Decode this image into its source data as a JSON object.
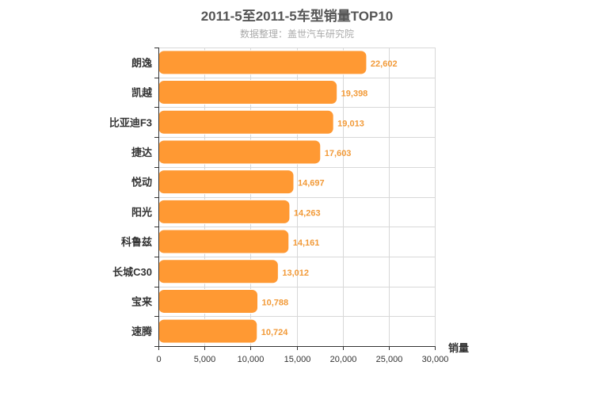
{
  "chart_data": {
    "type": "bar",
    "orientation": "horizontal",
    "title": "2011-5至2011-5车型销量TOP10",
    "subtitle": "数据整理：盖世汽车研究院",
    "categories": [
      "朗逸",
      "凯越",
      "比亚迪F3",
      "捷达",
      "悦动",
      "阳光",
      "科鲁兹",
      "长城C30",
      "宝来",
      "速腾"
    ],
    "values": [
      22602,
      19398,
      19013,
      17603,
      14697,
      14263,
      14161,
      13012,
      10788,
      10724
    ],
    "value_labels": [
      "22,602",
      "19,398",
      "19,013",
      "17,603",
      "14,697",
      "14,263",
      "14,161",
      "13,012",
      "10,788",
      "10,724"
    ],
    "xlabel": "销量",
    "ylabel": "",
    "xlim": [
      0,
      30000
    ],
    "ticks": [
      0,
      5000,
      10000,
      15000,
      20000,
      25000,
      30000
    ],
    "tick_labels": [
      "0",
      "5,000",
      "10,000",
      "15,000",
      "20,000",
      "25,000",
      "30,000"
    ],
    "grid": true,
    "bar_color": "#ff9933",
    "label_color": "#f29a38"
  }
}
